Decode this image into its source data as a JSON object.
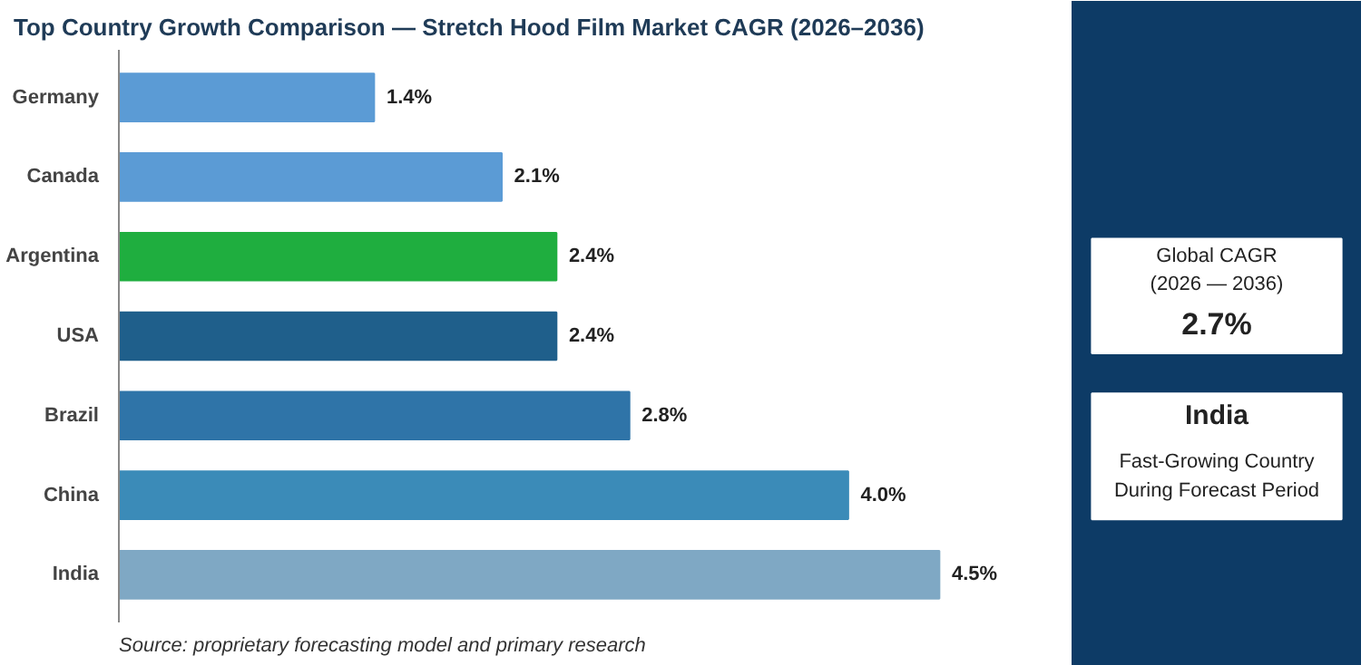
{
  "chart_data": [
    {
      "type": "bar",
      "orientation": "horizontal",
      "title": "Top Country Growth Comparison — Stretch Hood Film Market CAGR (2026–2036)",
      "categories": [
        "Germany",
        "Canada",
        "Argentina",
        "USA",
        "Brazil",
        "China",
        "India"
      ],
      "values": [
        1.4,
        2.1,
        2.4,
        2.4,
        2.8,
        4.0,
        4.5
      ],
      "colors": [
        "#5b9bd5",
        "#5b9bd5",
        "#1fae3f",
        "#1f5f8b",
        "#2f74a8",
        "#3b8bb8",
        "#7fa8c4"
      ],
      "value_labels": [
        "1.4%",
        "2.1%",
        "2.4%",
        "2.4%",
        "2.8%",
        "4.0%",
        "4.5%"
      ],
      "annotations": [
        "Source: proprietary forecasting model and primary research"
      ]
    },
    {
      "type": "other",
      "annotations": [
        "Global CAGR",
        "(2026 — 2036)",
        "2.7%",
        "India",
        "Fast-Growing Country",
        "During Forecast Period"
      ]
    }
  ]
}
